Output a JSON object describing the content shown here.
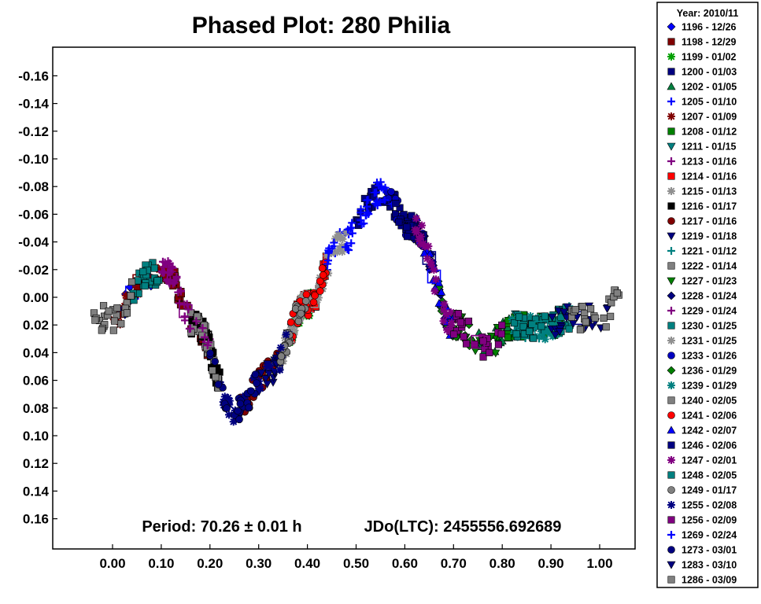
{
  "chart_data": {
    "type": "scatter",
    "title": "Phased Plot: 280 Philia",
    "xlabel": "",
    "ylabel": "",
    "xlim": [
      -0.1,
      1.08
    ],
    "ylim": [
      -0.18,
      0.18
    ],
    "y_inverted": true,
    "grid": false,
    "x_ticks": [
      "0.00",
      "0.10",
      "0.20",
      "0.30",
      "0.40",
      "0.50",
      "0.60",
      "0.70",
      "0.80",
      "0.90",
      "1.00"
    ],
    "y_ticks": [
      "-0.16",
      "-0.14",
      "-0.12",
      "-0.10",
      "-0.08",
      "-0.06",
      "-0.04",
      "-0.02",
      "0.00",
      "0.02",
      "0.04",
      "0.06",
      "0.08",
      "0.10",
      "0.12",
      "0.14",
      "0.16"
    ],
    "annotation_period": "Period: 70.26 ± 0.01 h",
    "annotation_epoch": "JDo(LTC): 2455556.692689",
    "legend_title": "Year: 2010/11",
    "legend_position": "right",
    "series": [
      {
        "name": "1196 - 12/26",
        "marker": "diamond",
        "color": "#0000ff",
        "phase_range": [
          0.0,
          0.08
        ]
      },
      {
        "name": "1198 - 12/29",
        "marker": "square",
        "color": "#800000",
        "phase_range": [
          0.1,
          0.2
        ]
      },
      {
        "name": "1199 - 01/02",
        "marker": "asterisk",
        "color": "#00a000",
        "phase_range": [
          0.36,
          0.42
        ]
      },
      {
        "name": "1200 - 01/03",
        "marker": "square",
        "color": "#000080",
        "phase_range": [
          0.5,
          0.6
        ]
      },
      {
        "name": "1202 - 01/05",
        "marker": "triangle-up",
        "color": "#008040",
        "phase_range": [
          0.74,
          0.84
        ]
      },
      {
        "name": "1205 - 01/10",
        "marker": "plus",
        "color": "#0000ff",
        "phase_range": [
          0.44,
          0.58
        ]
      },
      {
        "name": "1207 - 01/09",
        "marker": "asterisk",
        "color": "#800000",
        "phase_range": [
          -0.01,
          0.12
        ]
      },
      {
        "name": "1208 - 01/12",
        "marker": "square",
        "color": "#008000",
        "phase_range": [
          0.8,
          0.92
        ]
      },
      {
        "name": "1211 - 01/15",
        "marker": "triangle-down",
        "color": "#008080",
        "phase_range": [
          0.82,
          0.94
        ]
      },
      {
        "name": "1213 - 01/16",
        "marker": "plus",
        "color": "#800080",
        "phase_range": [
          0.1,
          0.2
        ]
      },
      {
        "name": "1214 - 01/16",
        "marker": "square",
        "color": "#ff0000",
        "phase_range": [
          0.36,
          0.44
        ]
      },
      {
        "name": "1215 - 01/13",
        "marker": "asterisk",
        "color": "#909090",
        "phase_range": [
          0.34,
          0.48
        ]
      },
      {
        "name": "1216 - 01/17",
        "marker": "square",
        "color": "#000000",
        "phase_range": [
          0.16,
          0.22
        ]
      },
      {
        "name": "1217 - 01/16",
        "marker": "circle",
        "color": "#800000",
        "phase_range": [
          0.26,
          0.34
        ]
      },
      {
        "name": "1219 - 01/18",
        "marker": "triangle-down",
        "color": "#000080",
        "phase_range": [
          0.3,
          0.37
        ]
      },
      {
        "name": "1221 - 01/12",
        "marker": "plus",
        "color": "#008080",
        "phase_range": [
          0.82,
          0.96
        ]
      },
      {
        "name": "1222 - 01/14",
        "marker": "square",
        "color": "#808080",
        "phase_range": [
          0.16,
          0.22
        ]
      },
      {
        "name": "1227 - 01/23",
        "marker": "triangle-down",
        "color": "#008000",
        "phase_range": [
          0.7,
          0.8
        ]
      },
      {
        "name": "1228 - 01/24",
        "marker": "diamond",
        "color": "#000080",
        "phase_range": [
          0.6,
          0.7
        ]
      },
      {
        "name": "1229 - 01/24",
        "marker": "plus",
        "color": "#800080",
        "phase_range": [
          0.1,
          0.2
        ]
      },
      {
        "name": "1230 - 01/25",
        "marker": "square",
        "color": "#008080",
        "phase_range": [
          0.04,
          0.11
        ]
      },
      {
        "name": "1231 - 01/25",
        "marker": "asterisk",
        "color": "#909090",
        "phase_range": [
          0.34,
          0.48
        ]
      },
      {
        "name": "1233 - 01/26",
        "marker": "circle",
        "color": "#0000c0",
        "phase_range": [
          0.56,
          0.64
        ]
      },
      {
        "name": "1236 - 01/29",
        "marker": "diamond",
        "color": "#008000",
        "phase_range": [
          0.66,
          0.74
        ]
      },
      {
        "name": "1239 - 01/29",
        "marker": "asterisk",
        "color": "#008080",
        "phase_range": [
          0.82,
          0.94
        ]
      },
      {
        "name": "1240 - 02/05",
        "marker": "square",
        "color": "#808080",
        "phase_range": [
          -0.04,
          0.04
        ]
      },
      {
        "name": "1241 - 02/06",
        "marker": "circle",
        "color": "#ff0000",
        "phase_range": [
          0.36,
          0.44
        ]
      },
      {
        "name": "1242 - 02/07",
        "marker": "triangle-up",
        "color": "#0000ff",
        "phase_range": [
          0.62,
          0.7
        ]
      },
      {
        "name": "1246 - 02/06",
        "marker": "square",
        "color": "#000080",
        "phase_range": [
          0.58,
          0.64
        ]
      },
      {
        "name": "1247 - 02/01",
        "marker": "asterisk",
        "color": "#800080",
        "phase_range": [
          0.62,
          0.7
        ]
      },
      {
        "name": "1248 - 02/05",
        "marker": "square",
        "color": "#008080",
        "phase_range": [
          0.82,
          0.94
        ]
      },
      {
        "name": "1249 - 01/17",
        "marker": "circle",
        "color": "#808080",
        "phase_range": [
          0.34,
          0.4
        ]
      },
      {
        "name": "1255 - 02/08",
        "marker": "asterisk",
        "color": "#000080",
        "phase_range": [
          0.22,
          0.36
        ]
      },
      {
        "name": "1256 - 02/09",
        "marker": "square",
        "color": "#800080",
        "phase_range": [
          0.7,
          0.8
        ]
      },
      {
        "name": "1269 - 02/24",
        "marker": "plus",
        "color": "#0000ff",
        "phase_range": [
          0.44,
          0.56
        ]
      },
      {
        "name": "1273 - 03/01",
        "marker": "circle",
        "color": "#000080",
        "phase_range": [
          0.2,
          0.3
        ]
      },
      {
        "name": "1283 - 03/10",
        "marker": "triangle-down",
        "color": "#000080",
        "phase_range": [
          0.9,
          1.02
        ]
      },
      {
        "name": "1286 - 03/09",
        "marker": "square",
        "color": "#808080",
        "phase_range": [
          0.94,
          1.04
        ]
      }
    ]
  }
}
